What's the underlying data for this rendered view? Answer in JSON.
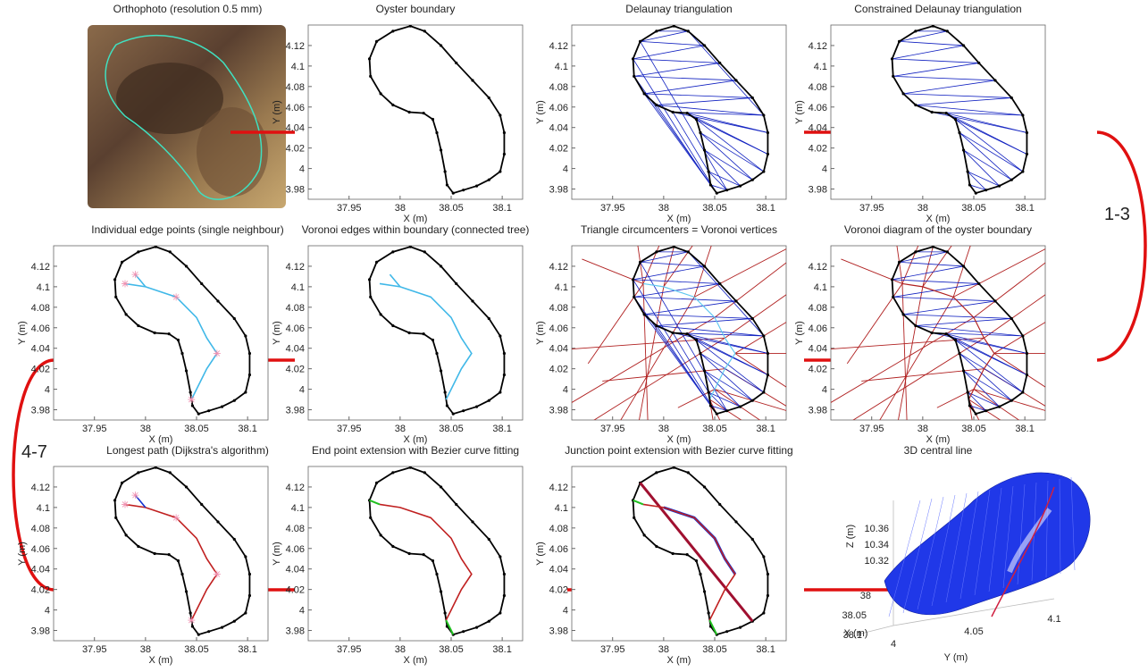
{
  "panels": [
    {
      "title": "Orthophoto (resolution 0.5 mm)"
    },
    {
      "title": "Oyster boundary",
      "xlabel": "X (m)",
      "ylabel": "Y (m)",
      "xlim": [
        37.91,
        38.12
      ],
      "ylim": [
        3.97,
        4.14
      ],
      "xticks": [
        37.95,
        38,
        38.05,
        38.1
      ],
      "yticks": [
        3.98,
        4,
        4.02,
        4.04,
        4.06,
        4.08,
        4.1,
        4.12
      ]
    },
    {
      "title": "Delaunay triangulation",
      "xlabel": "X (m)",
      "ylabel": "Y (m)",
      "xlim": [
        37.91,
        38.12
      ],
      "ylim": [
        3.97,
        4.14
      ],
      "xticks": [
        37.95,
        38,
        38.05,
        38.1
      ],
      "yticks": [
        3.98,
        4,
        4.02,
        4.04,
        4.06,
        4.08,
        4.1,
        4.12
      ]
    },
    {
      "title": "Constrained Delaunay triangulation",
      "xlabel": "X (m)",
      "ylabel": "Y (m)",
      "xlim": [
        37.91,
        38.12
      ],
      "ylim": [
        3.97,
        4.14
      ],
      "xticks": [
        37.95,
        38,
        38.05,
        38.1
      ],
      "yticks": [
        3.98,
        4,
        4.02,
        4.04,
        4.06,
        4.08,
        4.1,
        4.12
      ]
    },
    {
      "title": "Individual edge points (single neighbour)",
      "xlabel": "X (m)",
      "ylabel": "Y (m)",
      "xlim": [
        37.91,
        38.12
      ],
      "ylim": [
        3.97,
        4.14
      ],
      "xticks": [
        37.95,
        38,
        38.05,
        38.1
      ],
      "yticks": [
        3.98,
        4,
        4.02,
        4.04,
        4.06,
        4.08,
        4.1,
        4.12
      ]
    },
    {
      "title": "Voronoi edges within boundary (connected tree)",
      "xlabel": "X (m)",
      "ylabel": "Y (m)",
      "xlim": [
        37.91,
        38.12
      ],
      "ylim": [
        3.97,
        4.14
      ],
      "xticks": [
        37.95,
        38,
        38.05,
        38.1
      ],
      "yticks": [
        3.98,
        4,
        4.02,
        4.04,
        4.06,
        4.08,
        4.1,
        4.12
      ]
    },
    {
      "title": "Triangle circumcenters = Voronoi vertices",
      "xlabel": "X (m)",
      "ylabel": "Y (m)",
      "xlim": [
        37.91,
        38.12
      ],
      "ylim": [
        3.97,
        4.14
      ],
      "xticks": [
        37.95,
        38,
        38.05,
        38.1
      ],
      "yticks": [
        3.98,
        4,
        4.02,
        4.04,
        4.06,
        4.08,
        4.1,
        4.12
      ]
    },
    {
      "title": "Voronoi diagram of the oyster boundary",
      "xlabel": "X (m)",
      "ylabel": "Y (m)",
      "xlim": [
        37.91,
        38.12
      ],
      "ylim": [
        3.97,
        4.14
      ],
      "xticks": [
        37.95,
        38,
        38.05,
        38.1
      ],
      "yticks": [
        3.98,
        4,
        4.02,
        4.04,
        4.06,
        4.08,
        4.1,
        4.12
      ]
    },
    {
      "title": "Longest path (Dijkstra's algorithm)",
      "xlabel": "X (m)",
      "ylabel": "Y (m)",
      "xlim": [
        37.91,
        38.12
      ],
      "ylim": [
        3.97,
        4.14
      ],
      "xticks": [
        37.95,
        38,
        38.05,
        38.1
      ],
      "yticks": [
        3.98,
        4,
        4.02,
        4.04,
        4.06,
        4.08,
        4.1,
        4.12
      ]
    },
    {
      "title": "End point extension with Bezier curve fitting",
      "xlabel": "X (m)",
      "ylabel": "Y (m)",
      "xlim": [
        37.91,
        38.12
      ],
      "ylim": [
        3.97,
        4.14
      ],
      "xticks": [
        37.95,
        38,
        38.05,
        38.1
      ],
      "yticks": [
        3.98,
        4,
        4.02,
        4.04,
        4.06,
        4.08,
        4.1,
        4.12
      ]
    },
    {
      "title": "Junction point extension with Bezier curve fitting",
      "xlabel": "X (m)",
      "ylabel": "Y (m)",
      "xlim": [
        37.91,
        38.12
      ],
      "ylim": [
        3.97,
        4.14
      ],
      "xticks": [
        37.95,
        38,
        38.05,
        38.1
      ],
      "yticks": [
        3.98,
        4,
        4.02,
        4.04,
        4.06,
        4.08,
        4.1,
        4.12
      ]
    },
    {
      "title": "3D central line",
      "xlabel": "X (m)",
      "ylabel": "Y (m)",
      "zlabel": "Z (m)",
      "xticks": [
        38,
        38.05,
        38.1
      ],
      "yticks": [
        4,
        4.05,
        4.1
      ],
      "zticks": [
        10.32,
        10.34,
        10.36
      ]
    }
  ],
  "boundary": {
    "x": [
      38.01,
      38.024,
      38.04,
      38.055,
      38.071,
      38.087,
      38.098,
      38.102,
      38.102,
      38.098,
      38.087,
      38.075,
      38.062,
      38.052,
      38.046,
      38.044,
      38.04,
      38.036,
      38.032,
      38.023,
      38.009,
      37.993,
      37.981,
      37.971,
      37.97,
      37.977,
      37.993
    ],
    "y": [
      4.139,
      4.134,
      4.12,
      4.103,
      4.086,
      4.069,
      4.052,
      4.035,
      4.014,
      3.997,
      3.989,
      3.983,
      3.979,
      3.976,
      3.984,
      3.997,
      4.018,
      4.035,
      4.048,
      4.054,
      4.055,
      4.062,
      4.073,
      4.09,
      4.107,
      4.124,
      4.134
    ]
  },
  "centerline": {
    "x": [
      37.98,
      38.0,
      38.03,
      38.05,
      38.06,
      38.07,
      38.06,
      38.05,
      38.045
    ],
    "y": [
      4.103,
      4.1,
      4.09,
      4.07,
      4.05,
      4.035,
      4.02,
      4.0,
      3.99
    ]
  },
  "branch": {
    "x": [
      38.0,
      37.99
    ],
    "y": [
      4.1,
      4.112
    ]
  },
  "steps": [
    "1-3",
    "4-7"
  ]
}
